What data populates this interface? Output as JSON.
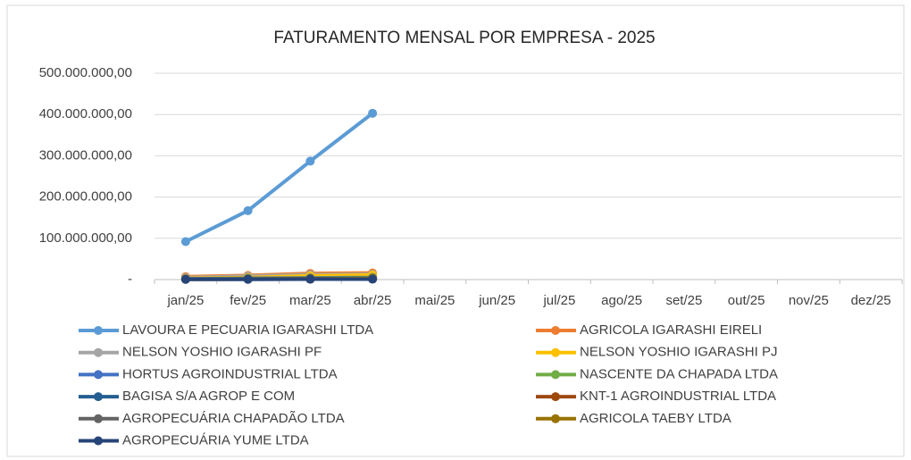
{
  "chart_data": {
    "type": "line",
    "title": "FATURAMENTO MENSAL POR EMPRESA - 2025",
    "categories": [
      "jan/25",
      "fev/25",
      "mar/25",
      "abr/25",
      "mai/25",
      "jun/25",
      "jul/25",
      "ago/25",
      "set/25",
      "out/25",
      "nov/25",
      "dez/25"
    ],
    "ylim": [
      0,
      500000000
    ],
    "yticks": [
      {
        "value": 0,
        "label": "-"
      },
      {
        "value": 100000000,
        "label": "100.000.000,00"
      },
      {
        "value": 200000000,
        "label": "200.000.000,00"
      },
      {
        "value": 300000000,
        "label": "300.000.000,00"
      },
      {
        "value": 400000000,
        "label": "400.000.000,00"
      },
      {
        "value": 500000000,
        "label": "500.000.000,00"
      }
    ],
    "grid": true,
    "legend": "bottom",
    "series": [
      {
        "name": "LAVOURA E PECUARIA IGARASHI LTDA",
        "color": "#5b9bd5",
        "values": [
          92000000,
          167000000,
          287000000,
          403000000,
          null,
          null,
          null,
          null,
          null,
          null,
          null,
          null
        ]
      },
      {
        "name": "AGRICOLA IGARASHI EIRELI",
        "color": "#ed7d31",
        "values": [
          7000000,
          10000000,
          15000000,
          16000000,
          null,
          null,
          null,
          null,
          null,
          null,
          null,
          null
        ]
      },
      {
        "name": "NELSON YOSHIO IGARASHI PF",
        "color": "#a5a5a5",
        "values": [
          5000000,
          8000000,
          12000000,
          13000000,
          null,
          null,
          null,
          null,
          null,
          null,
          null,
          null
        ]
      },
      {
        "name": "NELSON YOSHIO IGARASHI PJ",
        "color": "#ffc000",
        "values": [
          3000000,
          5000000,
          9000000,
          11000000,
          null,
          null,
          null,
          null,
          null,
          null,
          null,
          null
        ]
      },
      {
        "name": "HORTUS AGROINDUSTRIAL LTDA",
        "color": "#4472c4",
        "values": [
          2000000,
          3000000,
          4000000,
          5000000,
          null,
          null,
          null,
          null,
          null,
          null,
          null,
          null
        ]
      },
      {
        "name": "NASCENTE DA CHAPADA LTDA",
        "color": "#70ad47",
        "values": [
          1000000,
          2000000,
          3000000,
          4000000,
          null,
          null,
          null,
          null,
          null,
          null,
          null,
          null
        ]
      },
      {
        "name": "BAGISA S/A AGROP E COM",
        "color": "#255e91",
        "values": [
          1000000,
          2000000,
          2000000,
          3000000,
          null,
          null,
          null,
          null,
          null,
          null,
          null,
          null
        ]
      },
      {
        "name": "KNT-1 AGROINDUSTRIAL LTDA",
        "color": "#9e480e",
        "values": [
          1000000,
          1000000,
          2000000,
          2000000,
          null,
          null,
          null,
          null,
          null,
          null,
          null,
          null
        ]
      },
      {
        "name": "AGROPECUÁRIA CHAPADÃO LTDA",
        "color": "#636363",
        "values": [
          1000000,
          1000000,
          1000000,
          2000000,
          null,
          null,
          null,
          null,
          null,
          null,
          null,
          null
        ]
      },
      {
        "name": "AGRICOLA TAEBY LTDA",
        "color": "#997300",
        "values": [
          500000,
          1000000,
          1000000,
          3000000,
          null,
          null,
          null,
          null,
          null,
          null,
          null,
          null
        ]
      },
      {
        "name": "AGROPECUÁRIA YUME LTDA",
        "color": "#264478",
        "values": [
          500000,
          500000,
          1000000,
          1000000,
          null,
          null,
          null,
          null,
          null,
          null,
          null,
          null
        ]
      }
    ]
  }
}
